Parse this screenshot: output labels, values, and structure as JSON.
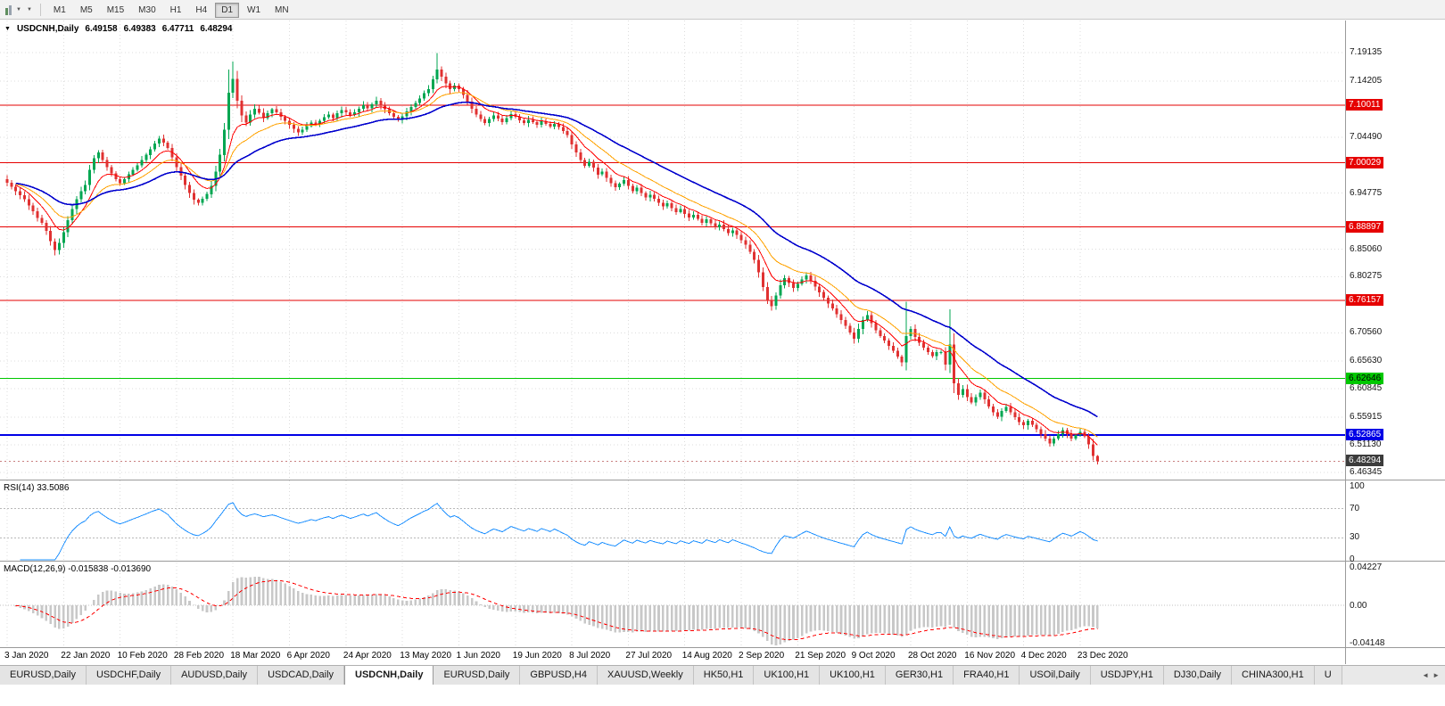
{
  "icons": {
    "collapse": "▼",
    "caret": "▼",
    "tab_left": "◄",
    "tab_right": "►"
  },
  "toolbar": {
    "timeframes": [
      "M1",
      "M5",
      "M15",
      "M30",
      "H1",
      "H4",
      "D1",
      "W1",
      "MN"
    ],
    "active_timeframe": "D1"
  },
  "chart": {
    "symbol": "USDCNH,Daily",
    "open": "6.49158",
    "high": "6.49383",
    "low": "6.47711",
    "close": "6.48294",
    "y_axis_ticks": [
      "7.19135",
      "7.14205",
      "7.04490",
      "6.94775",
      "6.85060",
      "6.80275",
      "6.70560",
      "6.65630",
      "6.60845",
      "6.55915",
      "6.51130",
      "6.46345"
    ],
    "current_price_chip_bg": "#3c3c3c"
  },
  "rsi": {
    "name": "RSI(14)",
    "value": "33.5086",
    "label": "RSI(14) 33.5086",
    "levels": [
      "100",
      "70",
      "30",
      "0"
    ],
    "line_color": "#1e90ff"
  },
  "macd": {
    "name": "MACD(12,26,9)",
    "main_value": "-0.015838",
    "signal_value": "-0.013690",
    "label": "MACD(12,26,9) -0.015838 -0.013690",
    "axis": [
      "0.04227",
      "0.00",
      "-0.04148"
    ],
    "hist_color": "#c8c8c8",
    "signal_color": "#ff0000"
  },
  "tabs": {
    "items": [
      {
        "label": "EURUSD,Daily"
      },
      {
        "label": "USDCHF,Daily"
      },
      {
        "label": "AUDUSD,Daily"
      },
      {
        "label": "USDCAD,Daily"
      },
      {
        "label": "USDCNH,Daily",
        "active": true
      },
      {
        "label": "EURUSD,Daily"
      },
      {
        "label": "GBPUSD,H4"
      },
      {
        "label": "XAUUSD,Weekly"
      },
      {
        "label": "HK50,H1"
      },
      {
        "label": "UK100,H1"
      },
      {
        "label": "UK100,H1"
      },
      {
        "label": "GER30,H1"
      },
      {
        "label": "FRA40,H1"
      },
      {
        "label": "USOil,Daily"
      },
      {
        "label": "USDJPY,H1"
      },
      {
        "label": "DJ30,Daily"
      },
      {
        "label": "CHINA300,H1"
      },
      {
        "label": "U"
      }
    ]
  },
  "chart_data": {
    "type": "candlestick",
    "symbol": "USDCNH",
    "timeframe": "Daily",
    "up_color": "#00a651",
    "down_color": "#e03131",
    "y_range": [
      6.46345,
      7.19135
    ],
    "x_labels": [
      "3 Jan 2020",
      "22 Jan 2020",
      "10 Feb 2020",
      "28 Feb 2020",
      "18 Mar 2020",
      "6 Apr 2020",
      "24 Apr 2020",
      "13 May 2020",
      "1 Jun 2020",
      "19 Jun 2020",
      "8 Jul 2020",
      "27 Jul 2020",
      "14 Aug 2020",
      "2 Sep 2020",
      "21 Sep 2020",
      "9 Oct 2020",
      "28 Oct 2020",
      "16 Nov 2020",
      "4 Dec 2020",
      "23 Dec 2020"
    ],
    "closes": [
      6.966,
      6.959,
      6.951,
      6.944,
      6.937,
      6.926,
      6.916,
      6.905,
      6.896,
      6.882,
      6.864,
      6.849,
      6.861,
      6.88,
      6.901,
      6.92,
      6.937,
      6.951,
      6.962,
      6.988,
      7.008,
      7.018,
      7.005,
      6.993,
      6.982,
      6.972,
      6.965,
      6.972,
      6.98,
      6.988,
      6.996,
      7.005,
      7.014,
      7.024,
      7.034,
      7.042,
      7.035,
      7.026,
      7.01,
      6.993,
      6.978,
      6.962,
      6.948,
      6.936,
      6.931,
      6.938,
      6.946,
      6.96,
      6.985,
      7.014,
      7.058,
      7.122,
      7.146,
      7.108,
      7.082,
      7.07,
      7.084,
      7.094,
      7.087,
      7.078,
      7.086,
      7.093,
      7.088,
      7.08,
      7.073,
      7.066,
      7.059,
      7.053,
      7.058,
      7.064,
      7.07,
      7.066,
      7.073,
      7.079,
      7.084,
      7.078,
      7.086,
      7.092,
      7.088,
      7.083,
      7.088,
      7.094,
      7.1,
      7.095,
      7.102,
      7.108,
      7.1,
      7.093,
      7.086,
      7.08,
      7.075,
      7.081,
      7.089,
      7.097,
      7.104,
      7.112,
      7.121,
      7.128,
      7.145,
      7.162,
      7.15,
      7.138,
      7.128,
      7.134,
      7.128,
      7.118,
      7.106,
      7.094,
      7.084,
      7.076,
      7.069,
      7.076,
      7.082,
      7.077,
      7.071,
      7.078,
      7.085,
      7.08,
      7.074,
      7.069,
      7.075,
      7.071,
      7.066,
      7.072,
      7.068,
      7.063,
      7.068,
      7.062,
      7.055,
      7.048,
      7.032,
      7.018,
      7.005,
      6.995,
      7.002,
      6.992,
      6.98,
      6.985,
      6.974,
      6.965,
      6.958,
      6.964,
      6.97,
      6.96,
      6.951,
      6.957,
      6.948,
      6.94,
      6.945,
      6.938,
      6.931,
      6.925,
      6.93,
      6.922,
      6.915,
      6.92,
      6.912,
      6.905,
      6.91,
      6.903,
      6.896,
      6.902,
      6.895,
      6.888,
      6.893,
      6.885,
      6.878,
      6.883,
      6.875,
      6.866,
      6.858,
      6.846,
      6.832,
      6.81,
      6.785,
      6.762,
      6.752,
      6.77,
      6.788,
      6.8,
      6.792,
      6.783,
      6.79,
      6.798,
      6.805,
      6.796,
      6.786,
      6.776,
      6.766,
      6.756,
      6.748,
      6.738,
      6.728,
      6.718,
      6.706,
      6.695,
      6.712,
      6.728,
      6.736,
      6.722,
      6.71,
      6.7,
      6.692,
      6.683,
      6.674,
      6.664,
      6.654,
      6.7,
      6.712,
      6.698,
      6.688,
      6.68,
      6.672,
      6.665,
      6.672,
      6.672,
      6.65,
      6.685,
      6.618,
      6.598,
      6.608,
      6.594,
      6.585,
      6.594,
      6.602,
      6.59,
      6.578,
      6.568,
      6.56,
      6.57,
      6.577,
      6.568,
      6.559,
      6.551,
      6.545,
      6.553,
      6.546,
      6.538,
      6.53,
      6.522,
      6.514,
      6.522,
      6.53,
      6.537,
      6.53,
      6.522,
      6.528,
      6.534,
      6.526,
      6.512,
      6.4916,
      6.48294
    ],
    "wick_overrides": {
      "11": {
        "l": 6.84
      },
      "51": {
        "h": 7.162
      },
      "52": {
        "h": 7.176
      },
      "99": {
        "h": 7.1905
      },
      "195": {
        "l": 6.6865
      },
      "207": {
        "h": 6.7595
      },
      "217": {
        "h": 6.7465,
        "l": 6.6355
      },
      "251": {
        "h": 6.49383,
        "l": 6.47711
      }
    },
    "moving_averages": [
      {
        "period": 8,
        "color": "#ff0000",
        "width": 1
      },
      {
        "period": 16,
        "color": "#ffa200",
        "width": 1
      },
      {
        "period": 34,
        "color": "#0000cd",
        "width": 1.6
      }
    ],
    "hlines": [
      {
        "price": 7.10011,
        "color": "#e60000",
        "label_text": "#ffffff",
        "width": 1
      },
      {
        "price": 7.00029,
        "color": "#e60000",
        "label_text": "#ffffff",
        "width": 1
      },
      {
        "price": 6.88897,
        "color": "#e60000",
        "label_text": "#ffffff",
        "width": 1
      },
      {
        "price": 6.76157,
        "color": "#e60000",
        "label_text": "#ffffff",
        "width": 1
      },
      {
        "price": 6.62646,
        "color": "#00c800",
        "label_text": "#000000",
        "width": 1
      },
      {
        "price": 6.52865,
        "color": "#0000e6",
        "label_text": "#ffffff",
        "width": 2
      }
    ],
    "indicators": {
      "rsi": {
        "period": 14,
        "last": 33.5086
      },
      "macd": {
        "fast": 12,
        "slow": 26,
        "signal": 9,
        "last_main": -0.015838,
        "last_signal": -0.01369
      }
    }
  }
}
